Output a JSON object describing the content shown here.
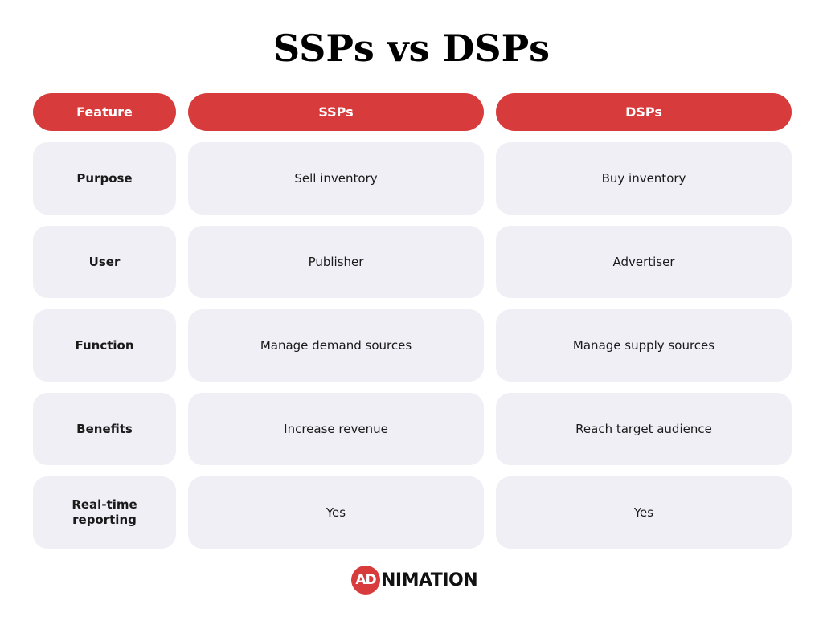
{
  "title": "SSPs vs DSPs",
  "headers": [
    "Feature",
    "SSPs",
    "DSPs"
  ],
  "rows": [
    {
      "feature": "Purpose",
      "ssp": "Sell inventory",
      "dsp": "Buy inventory"
    },
    {
      "feature": "User",
      "ssp": "Publisher",
      "dsp": "Advertiser"
    },
    {
      "feature": "Function",
      "ssp": "Manage demand sources",
      "dsp": "Manage supply sources"
    },
    {
      "feature": "Benefits",
      "ssp": "Increase revenue",
      "dsp": "Reach target audience"
    },
    {
      "feature": "Real-time reporting",
      "ssp": "Yes",
      "dsp": "Yes"
    }
  ],
  "logo": {
    "mark": "AD",
    "text": "NIMATION"
  },
  "colors": {
    "accent": "#d83b3b",
    "cell_bg": "#efeff5",
    "text": "#111111"
  }
}
